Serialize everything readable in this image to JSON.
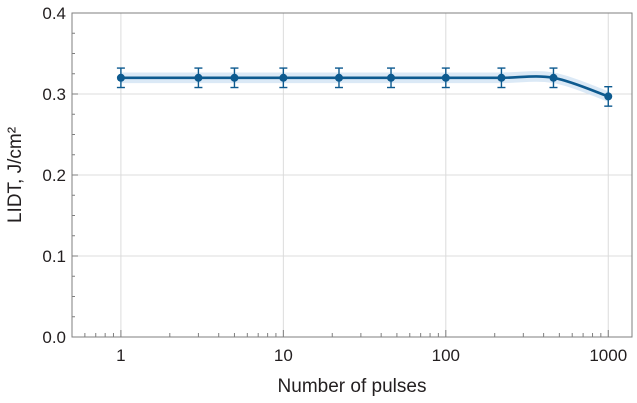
{
  "chart_data": {
    "type": "line",
    "title": "",
    "xlabel": "Number of pulses",
    "ylabel": "LIDT, J/cm²",
    "x_scale": "log",
    "xlim": [
      0.5,
      1400
    ],
    "ylim": [
      0,
      0.4
    ],
    "x_ticks": [
      1,
      10,
      100,
      1000
    ],
    "x_tick_labels": [
      "1",
      "10",
      "100",
      "1000"
    ],
    "y_ticks": [
      0,
      0.1,
      0.2,
      0.3,
      0.4
    ],
    "y_tick_labels": [
      "0.0",
      "0.1",
      "0.2",
      "0.3",
      "0.4"
    ],
    "grid": true,
    "colors": {
      "line": "#0d5a8f",
      "band": "#cfe2f3",
      "grid": "#dcdcdc",
      "axis": "#7f7f7f"
    },
    "series": [
      {
        "x": [
          1,
          3,
          5,
          10,
          22,
          46,
          100,
          220,
          460,
          1000
        ],
        "y": [
          0.32,
          0.32,
          0.32,
          0.32,
          0.32,
          0.32,
          0.32,
          0.32,
          0.32,
          0.297
        ],
        "error": [
          0.012,
          0.012,
          0.012,
          0.012,
          0.012,
          0.012,
          0.012,
          0.012,
          0.012,
          0.012
        ]
      }
    ]
  }
}
